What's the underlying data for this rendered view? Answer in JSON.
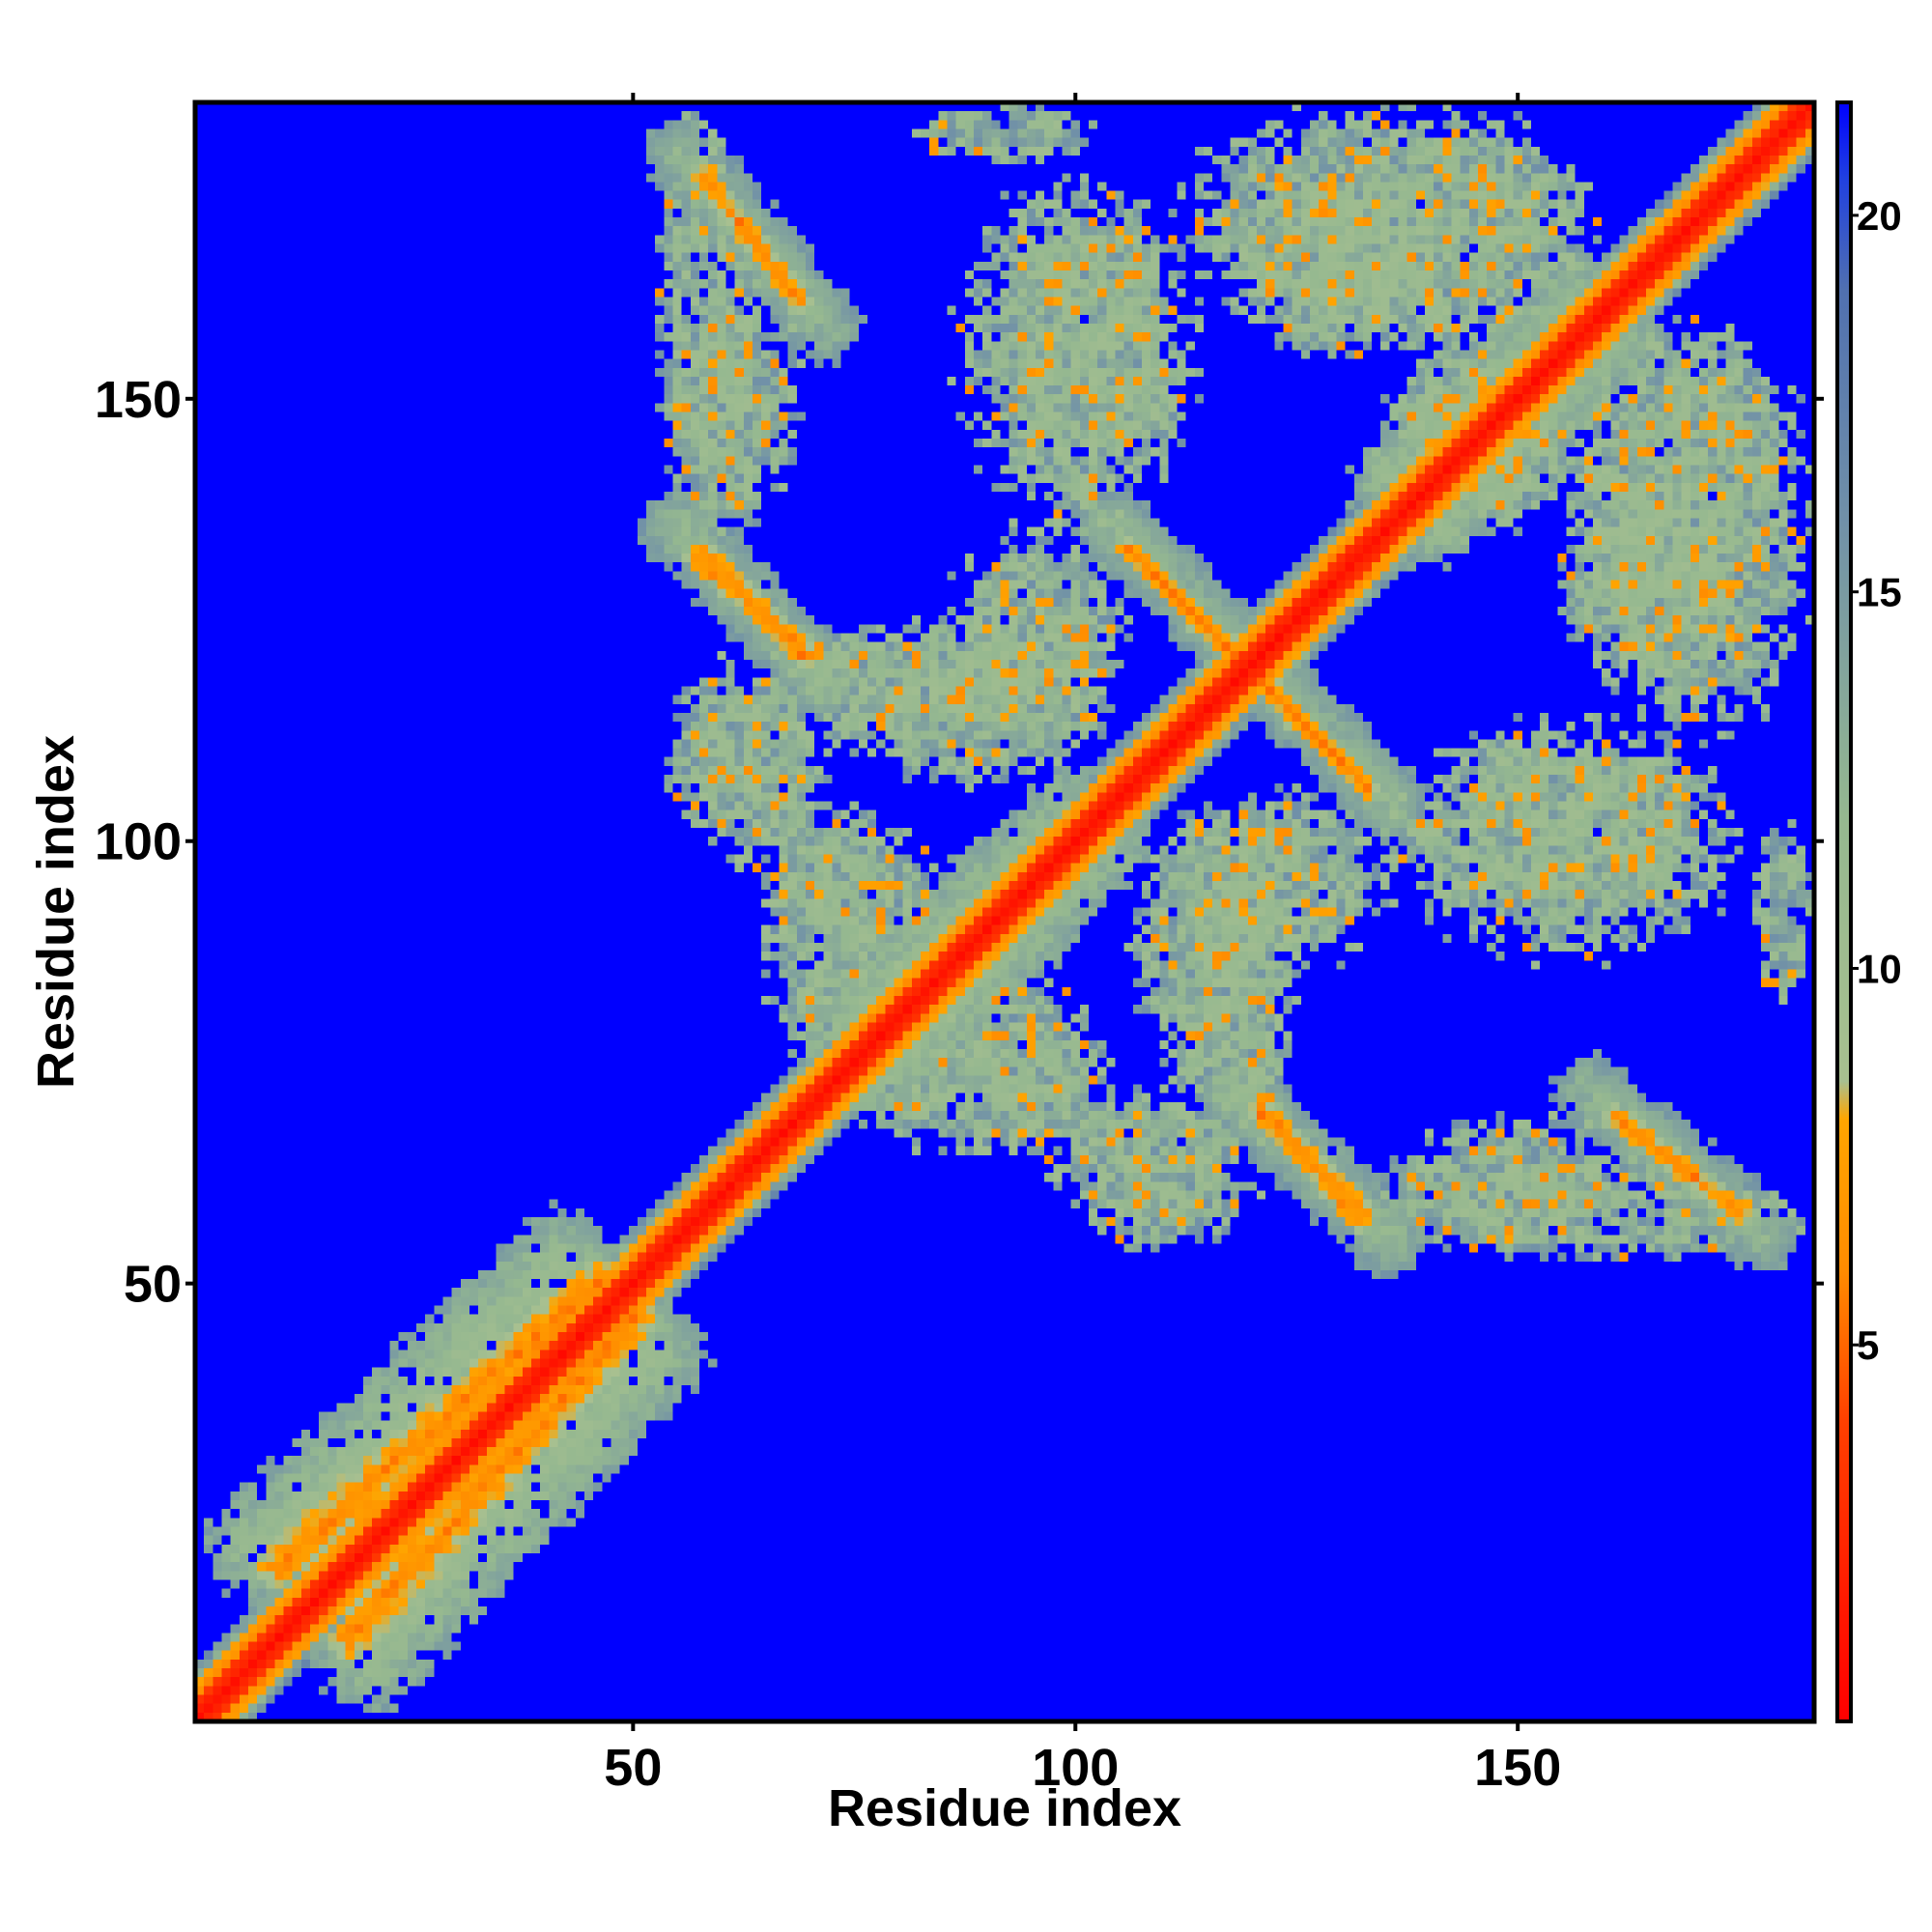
{
  "chart_data": {
    "type": "heatmap",
    "title": "",
    "xlabel": "Residue index",
    "ylabel": "Residue index",
    "xlim": [
      1,
      183
    ],
    "ylim": [
      1,
      183
    ],
    "n_residues": 183,
    "x_ticks": [
      50,
      100,
      150
    ],
    "y_ticks": [
      50,
      100,
      150
    ],
    "colorbar": {
      "range": [
        0,
        21.5
      ],
      "ticks": [
        5,
        10,
        15,
        20
      ],
      "stops": [
        {
          "value": 0,
          "color": "#ff0000"
        },
        {
          "value": 4,
          "color": "#ff4000"
        },
        {
          "value": 6,
          "color": "#ff8c00"
        },
        {
          "value": 8,
          "color": "#ffa500"
        },
        {
          "value": 8.5,
          "color": "#a8c090"
        },
        {
          "value": 12,
          "color": "#95b890"
        },
        {
          "value": 16,
          "color": "#7090a8"
        },
        {
          "value": 19,
          "color": "#5070b0"
        },
        {
          "value": 20.5,
          "color": "#2040e0"
        },
        {
          "value": 21.5,
          "color": "#0000ff"
        }
      ],
      "position": "right"
    },
    "background_value": 21.5,
    "diagonal_band": {
      "center_value": 0.5,
      "edge_value": 4.5,
      "core_halfwidth": 2
    },
    "contact_segments": [
      {
        "from": [
          20,
          8
        ],
        "to": [
          52,
          42
        ],
        "value": 11,
        "halfwidth": 6
      },
      {
        "from": [
          18,
          10
        ],
        "to": [
          50,
          46
        ],
        "value": 6,
        "halfwidth": 2.5
      },
      {
        "from": [
          74,
          78
        ],
        "to": [
          100,
          102
        ],
        "value": 11,
        "halfwidth": 6
      },
      {
        "from": [
          137,
          140
        ],
        "to": [
          158,
          160
        ],
        "value": 11,
        "halfwidth": 6
      },
      {
        "from": [
          62,
          170
        ],
        "to": [
          68,
          162
        ],
        "value": 6,
        "halfwidth": 1.2
      },
      {
        "from": [
          57,
          132
        ],
        "to": [
          70,
          121
        ],
        "value": 6,
        "halfwidth": 1.2
      },
      {
        "from": [
          107,
          132
        ],
        "to": [
          133,
          106
        ],
        "value": 6,
        "halfwidth": 1.2
      },
      {
        "from": [
          121,
          69
        ],
        "to": [
          133,
          58
        ],
        "value": 6,
        "halfwidth": 1.2
      },
      {
        "from": [
          161,
          69
        ],
        "to": [
          175,
          58
        ],
        "value": 6,
        "halfwidth": 1.2
      },
      {
        "from": [
          60,
          172
        ],
        "to": [
          70,
          160
        ],
        "value": 12,
        "halfwidth": 4
      },
      {
        "from": [
          55,
          135
        ],
        "to": [
          72,
          118
        ],
        "value": 12,
        "halfwidth": 4
      },
      {
        "from": [
          105,
          135
        ],
        "to": [
          136,
          104
        ],
        "value": 12,
        "halfwidth": 4
      },
      {
        "from": [
          118,
          72
        ],
        "to": [
          136,
          55
        ],
        "value": 12,
        "halfwidth": 4
      },
      {
        "from": [
          158,
          72
        ],
        "to": [
          178,
          55
        ],
        "value": 12,
        "halfwidth": 4
      }
    ],
    "contact_blobs": [
      {
        "center": [
          58,
          158
        ],
        "radius": [
          5,
          22
        ],
        "value": 13
      },
      {
        "center": [
          60,
          110
        ],
        "radius": [
          6,
          9
        ],
        "value": 13
      },
      {
        "center": [
          80,
          118
        ],
        "radius": [
          14,
          6
        ],
        "value": 13
      },
      {
        "center": [
          100,
          155
        ],
        "radius": [
          12,
          18
        ],
        "value": 13
      },
      {
        "center": [
          95,
          120
        ],
        "radius": [
          8,
          8
        ],
        "value": 13
      },
      {
        "center": [
          140,
          168
        ],
        "radius": [
          15,
          12
        ],
        "value": 13
      },
      {
        "center": [
          170,
          135
        ],
        "radius": [
          12,
          22
        ],
        "value": 13
      },
      {
        "center": [
          157,
          102
        ],
        "radius": [
          13,
          9
        ],
        "value": 13
      },
      {
        "center": [
          164,
          128
        ],
        "radius": [
          9,
          9
        ],
        "value": 13
      },
      {
        "center": [
          75,
          95
        ],
        "radius": [
          9,
          7
        ],
        "value": 13
      },
      {
        "center": [
          90,
          72
        ],
        "radius": [
          12,
          7
        ],
        "value": 13
      },
      {
        "center": [
          115,
          88
        ],
        "radius": [
          8,
          15
        ],
        "value": 13
      },
      {
        "center": [
          125,
          96
        ],
        "radius": [
          9,
          9
        ],
        "value": 13
      },
      {
        "center": [
          108,
          64
        ],
        "radius": [
          10,
          7
        ],
        "value": 13
      },
      {
        "center": [
          150,
          62
        ],
        "radius": [
          12,
          6
        ],
        "value": 13
      },
      {
        "center": [
          145,
          145
        ],
        "radius": [
          10,
          9
        ],
        "value": 13
      },
      {
        "center": [
          180,
          92
        ],
        "radius": [
          3,
          10
        ],
        "value": 13
      }
    ]
  }
}
